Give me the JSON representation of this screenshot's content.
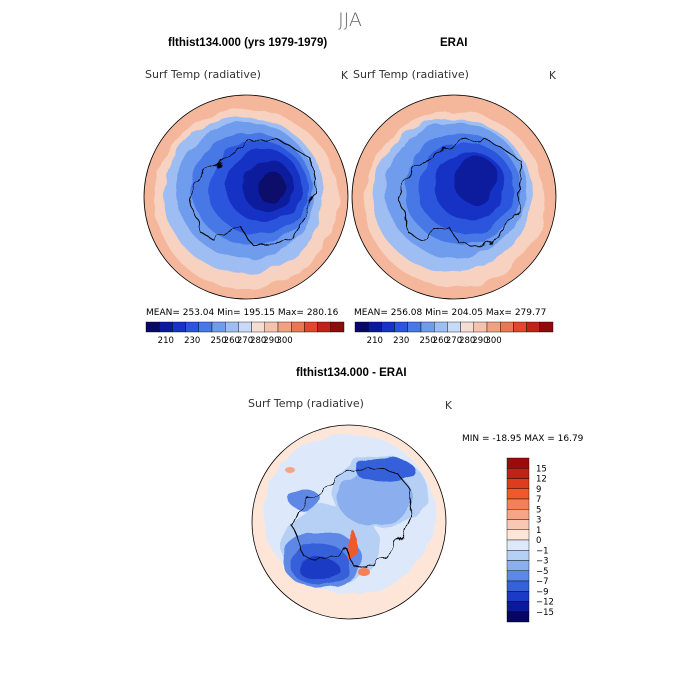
{
  "season": "JJA",
  "panels": {
    "model": {
      "title": "flthist134.000 (yrs 1979-1979)",
      "variable": "Surf Temp (radiative)",
      "units": "K",
      "stats": "MEAN= 253.04   Min= 195.15   Max= 280.16"
    },
    "obs": {
      "title": "ERAI",
      "variable": "Surf Temp (radiative)",
      "units": "K",
      "stats": "MEAN= 256.08   Min= 204.05   Max= 279.77"
    },
    "diff": {
      "title": "flthist134.000 - ERAI",
      "variable": "Surf Temp (radiative)",
      "units": "K",
      "minmax": "MIN = -18.95   MAX =   16.79"
    }
  },
  "colorbar_abs": {
    "labels": [
      "210",
      "230",
      "250",
      "260",
      "270",
      "280",
      "290",
      "300"
    ],
    "colors": [
      "#08086b",
      "#0a1a9c",
      "#1533c4",
      "#2a55dc",
      "#4778e6",
      "#6f9ced",
      "#9dbdf3",
      "#c9daf8",
      "#f6ddd2",
      "#f5c2ae",
      "#f29f82",
      "#ec7654",
      "#e0472c",
      "#c0221a",
      "#8c0c0c"
    ]
  },
  "colorbar_diff": {
    "labels": [
      "15",
      "12",
      "9",
      "7",
      "5",
      "3",
      "1",
      "0",
      "−1",
      "−3",
      "−5",
      "−7",
      "−9",
      "−12",
      "−15"
    ],
    "colors": [
      "#9a0c0c",
      "#c0221a",
      "#dd3c1e",
      "#ee5a2c",
      "#f47f58",
      "#f5a585",
      "#f8c8b3",
      "#fde6d8",
      "#dde9fa",
      "#b6cff5",
      "#8aaeee",
      "#5e88e6",
      "#3561d9",
      "#1b3bc4",
      "#0c1a9a",
      "#06065e"
    ]
  },
  "colors": {
    "warm_outer": "#f4b79c",
    "warm_mid": "#f8d2c0",
    "cold_deep": "#0a1a9c",
    "cold_mid": "#2a55dc",
    "diff_neutral": "#dde9fa"
  }
}
